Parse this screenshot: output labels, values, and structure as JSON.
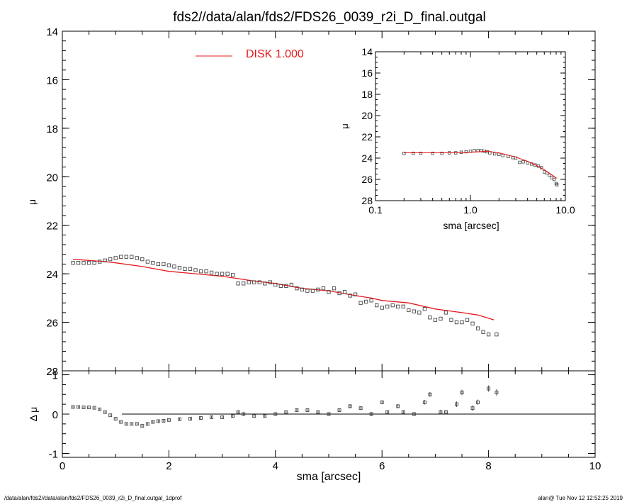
{
  "title": "fds2//data/alan/fds2/FDS26_0039_r2i_D_final.outgal",
  "footer": {
    "left": "/data/alan/fds2//data/alan/fds2/FDS26_0039_r2i_D_final.outgal_1dprof",
    "right": "alan@  Tue Nov 12 12:52:25 2019"
  },
  "colors": {
    "model": "#e41a1c",
    "data": "#444444",
    "axis": "#000000"
  },
  "chart_data": [
    {
      "id": "main",
      "type": "scatter",
      "ylabel": "μ",
      "xlim": [
        0,
        10
      ],
      "ylim": [
        28,
        14
      ],
      "yticks": [
        "14",
        "16",
        "18",
        "20",
        "22",
        "24",
        "26",
        "28"
      ],
      "legend": {
        "label": "DISK  1.000",
        "placement": "top-center"
      },
      "series": [
        {
          "name": "DISK  1.000",
          "kind": "line",
          "x": [
            0.2,
            0.5,
            0.8,
            1.0,
            1.5,
            2.0,
            2.5,
            3.0,
            3.3,
            3.6,
            4.0,
            4.5,
            5.0,
            5.5,
            5.8,
            6.0,
            6.5,
            7.0,
            7.5,
            7.8,
            8.1
          ],
          "y": [
            23.4,
            23.45,
            23.5,
            23.55,
            23.7,
            23.9,
            24.0,
            24.1,
            24.2,
            24.3,
            24.4,
            24.6,
            24.7,
            24.9,
            25.0,
            25.1,
            25.2,
            25.45,
            25.6,
            25.7,
            25.9
          ]
        },
        {
          "kind": "points",
          "x": [
            0.2,
            0.3,
            0.4,
            0.5,
            0.6,
            0.7,
            0.8,
            0.9,
            1.0,
            1.1,
            1.2,
            1.3,
            1.4,
            1.5,
            1.6,
            1.7,
            1.8,
            1.9,
            2.0,
            2.1,
            2.2,
            2.3,
            2.4,
            2.5,
            2.6,
            2.7,
            2.8,
            2.9,
            3.0,
            3.1,
            3.2,
            3.3,
            3.4,
            3.5,
            3.6,
            3.7,
            3.8,
            3.9,
            4.0,
            4.1,
            4.2,
            4.3,
            4.4,
            4.5,
            4.6,
            4.7,
            4.8,
            4.9,
            5.0,
            5.1,
            5.2,
            5.3,
            5.4,
            5.5,
            5.6,
            5.7,
            5.8,
            5.9,
            6.0,
            6.1,
            6.2,
            6.3,
            6.4,
            6.5,
            6.6,
            6.7,
            6.8,
            6.9,
            7.0,
            7.1,
            7.2,
            7.3,
            7.4,
            7.5,
            7.6,
            7.7,
            7.8,
            7.9,
            8.0,
            8.15
          ],
          "y": [
            23.55,
            23.55,
            23.55,
            23.55,
            23.55,
            23.5,
            23.45,
            23.4,
            23.35,
            23.3,
            23.3,
            23.3,
            23.35,
            23.4,
            23.5,
            23.55,
            23.6,
            23.6,
            23.65,
            23.7,
            23.75,
            23.8,
            23.8,
            23.85,
            23.9,
            23.9,
            23.95,
            24.0,
            24.0,
            24.0,
            24.05,
            24.4,
            24.4,
            24.35,
            24.35,
            24.35,
            24.4,
            24.35,
            24.45,
            24.5,
            24.5,
            24.45,
            24.6,
            24.65,
            24.7,
            24.7,
            24.65,
            24.6,
            24.75,
            24.6,
            24.8,
            24.75,
            24.9,
            24.85,
            25.2,
            25.15,
            25.1,
            25.3,
            25.4,
            25.35,
            25.3,
            25.35,
            25.35,
            25.5,
            25.55,
            25.6,
            25.45,
            25.8,
            25.9,
            25.85,
            25.6,
            25.9,
            26.0,
            26.0,
            25.9,
            26.05,
            26.25,
            26.4,
            26.5,
            26.5
          ]
        }
      ]
    },
    {
      "id": "residual",
      "type": "scatter",
      "xlabel": "sma [arcsec]",
      "ylabel": "Δ μ",
      "xlim": [
        0,
        10
      ],
      "ylim": [
        -1.1,
        1.1
      ],
      "xticks": [
        "0",
        "2",
        "4",
        "6",
        "8",
        "10"
      ],
      "yticks": [
        "-1",
        "0",
        "1"
      ],
      "grid": false,
      "series": [
        {
          "kind": "points-errorbars",
          "x": [
            0.2,
            0.3,
            0.4,
            0.5,
            0.6,
            0.7,
            0.8,
            0.9,
            1.0,
            1.1,
            1.2,
            1.3,
            1.4,
            1.5,
            1.6,
            1.7,
            1.8,
            1.9,
            2.0,
            2.2,
            2.4,
            2.6,
            2.8,
            3.0,
            3.2,
            3.3,
            3.4,
            3.6,
            3.8,
            4.0,
            4.2,
            4.4,
            4.6,
            4.8,
            5.0,
            5.2,
            5.4,
            5.6,
            5.8,
            6.0,
            6.1,
            6.3,
            6.4,
            6.6,
            6.8,
            6.9,
            7.1,
            7.2,
            7.4,
            7.5,
            7.7,
            7.8,
            8.0,
            8.15
          ],
          "y": [
            0.18,
            0.18,
            0.17,
            0.17,
            0.16,
            0.12,
            0.05,
            -0.03,
            -0.12,
            -0.2,
            -0.25,
            -0.25,
            -0.25,
            -0.3,
            -0.25,
            -0.2,
            -0.18,
            -0.17,
            -0.15,
            -0.13,
            -0.12,
            -0.1,
            -0.08,
            -0.08,
            -0.05,
            0.05,
            0.0,
            -0.05,
            -0.05,
            0.0,
            0.05,
            0.1,
            0.1,
            0.05,
            0.0,
            0.1,
            0.2,
            0.15,
            0.0,
            0.3,
            0.05,
            0.2,
            0.05,
            0.0,
            0.3,
            0.5,
            0.05,
            0.05,
            0.25,
            0.55,
            0.15,
            0.3,
            0.65,
            0.55
          ],
          "err": [
            0.02,
            0.02,
            0.02,
            0.02,
            0.02,
            0.02,
            0.02,
            0.02,
            0.02,
            0.02,
            0.02,
            0.02,
            0.02,
            0.03,
            0.03,
            0.03,
            0.03,
            0.03,
            0.03,
            0.03,
            0.03,
            0.03,
            0.03,
            0.03,
            0.03,
            0.03,
            0.03,
            0.03,
            0.03,
            0.03,
            0.04,
            0.04,
            0.04,
            0.04,
            0.04,
            0.04,
            0.05,
            0.05,
            0.05,
            0.05,
            0.05,
            0.05,
            0.05,
            0.05,
            0.06,
            0.06,
            0.06,
            0.06,
            0.07,
            0.07,
            0.07,
            0.07,
            0.08,
            0.08
          ]
        }
      ]
    },
    {
      "id": "inset",
      "type": "scatter",
      "xlabel": "sma [arcsec]",
      "ylabel": "μ",
      "xscale": "log",
      "xlim": [
        0.1,
        10
      ],
      "ylim": [
        28,
        14
      ],
      "xticks": [
        "0.1",
        "1.0",
        "10.0"
      ],
      "yticks": [
        "14",
        "16",
        "18",
        "20",
        "22",
        "24",
        "26",
        "28"
      ],
      "series": [
        {
          "kind": "line",
          "x": [
            0.2,
            0.5,
            0.8,
            1.0,
            1.5,
            2.0,
            3.0,
            4.0,
            5.0,
            6.0,
            7.0,
            8.1
          ],
          "y": [
            23.5,
            23.5,
            23.5,
            23.45,
            23.35,
            23.5,
            23.9,
            24.3,
            24.7,
            25.1,
            25.5,
            25.9
          ]
        },
        {
          "kind": "points",
          "x": [
            0.2,
            0.25,
            0.3,
            0.4,
            0.5,
            0.6,
            0.7,
            0.8,
            0.9,
            1.0,
            1.1,
            1.2,
            1.3,
            1.4,
            1.5,
            1.6,
            1.8,
            2.0,
            2.2,
            2.5,
            2.8,
            3.0,
            3.3,
            3.6,
            4.0,
            4.4,
            4.8,
            5.2,
            5.6,
            6.0,
            6.4,
            6.8,
            7.2,
            7.6,
            8.0,
            8.15
          ],
          "y": [
            23.55,
            23.55,
            23.55,
            23.55,
            23.55,
            23.5,
            23.5,
            23.45,
            23.4,
            23.35,
            23.3,
            23.3,
            23.3,
            23.35,
            23.4,
            23.5,
            23.6,
            23.65,
            23.75,
            23.85,
            23.95,
            24.0,
            24.4,
            24.35,
            24.45,
            24.55,
            24.65,
            24.75,
            24.9,
            25.3,
            25.4,
            25.6,
            25.85,
            26.0,
            26.4,
            26.5
          ]
        }
      ]
    }
  ]
}
